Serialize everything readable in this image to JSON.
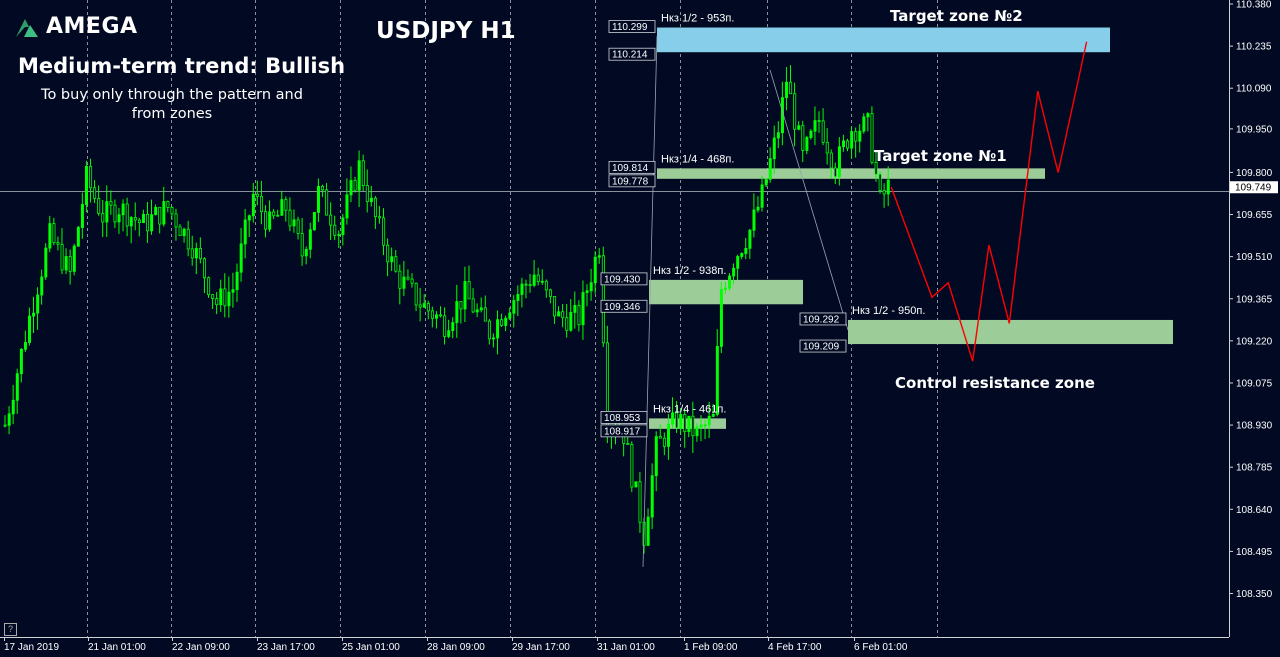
{
  "logo": {
    "text": "AMEGA",
    "icon": "amega-logo-icon",
    "icon_color": "#2e9e6a"
  },
  "title": "USDJPY H1",
  "trend": "Medium-term trend: Bullish",
  "note": [
    "To buy only through the pattern  and",
    "from zones"
  ],
  "labels": {
    "target2": "Target zone №2",
    "target1": "Target zone №1",
    "control": "Control resistance zone",
    "corner": "?"
  },
  "colors": {
    "background": "#020a23",
    "candle": "#00ff00",
    "zone_green": "#9ccc98",
    "zone_blue": "#87ceeb",
    "forecast": "#ff0000",
    "grid": "#8a9099"
  },
  "chart_data": {
    "type": "candlestick",
    "symbol": "USDJPY",
    "timeframe": "H1",
    "ylim": [
      108.29,
      110.445
    ],
    "y_ticks": [
      "110.380",
      "110.235",
      "110.090",
      "109.950",
      "109.800",
      "109.655",
      "109.510",
      "109.365",
      "109.220",
      "109.075",
      "108.930",
      "108.785",
      "108.640",
      "108.495",
      "108.350"
    ],
    "current_price": "109.749",
    "x_ticks": [
      "17 Jan 2019",
      "21 Jan 01:00",
      "22 Jan 09:00",
      "23 Jan 17:00",
      "25 Jan 01:00",
      "28 Jan 09:00",
      "29 Jan 17:00",
      "31 Jan 01:00",
      "1 Feb 09:00",
      "4 Feb 17:00",
      "6 Feb 01:00"
    ],
    "close_path": [
      {
        "i": 0,
        "v": 108.93
      },
      {
        "i": 6,
        "v": 109.3
      },
      {
        "i": 11,
        "v": 109.58
      },
      {
        "i": 16,
        "v": 109.45
      },
      {
        "i": 20,
        "v": 109.78
      },
      {
        "i": 24,
        "v": 109.65
      },
      {
        "i": 28,
        "v": 109.68
      },
      {
        "i": 34,
        "v": 109.62
      },
      {
        "i": 40,
        "v": 109.68
      },
      {
        "i": 46,
        "v": 109.55
      },
      {
        "i": 52,
        "v": 109.35
      },
      {
        "i": 56,
        "v": 109.4
      },
      {
        "i": 61,
        "v": 109.72
      },
      {
        "i": 65,
        "v": 109.62
      },
      {
        "i": 69,
        "v": 109.68
      },
      {
        "i": 73,
        "v": 109.52
      },
      {
        "i": 77,
        "v": 109.73
      },
      {
        "i": 82,
        "v": 109.6
      },
      {
        "i": 87,
        "v": 109.82
      },
      {
        "i": 91,
        "v": 109.64
      },
      {
        "i": 96,
        "v": 109.45
      },
      {
        "i": 102,
        "v": 109.35
      },
      {
        "i": 108,
        "v": 109.28
      },
      {
        "i": 113,
        "v": 109.38
      },
      {
        "i": 119,
        "v": 109.25
      },
      {
        "i": 124,
        "v": 109.35
      },
      {
        "i": 130,
        "v": 109.45
      },
      {
        "i": 136,
        "v": 109.3
      },
      {
        "i": 141,
        "v": 109.3
      },
      {
        "i": 146,
        "v": 109.55
      },
      {
        "i": 148,
        "v": 108.95
      },
      {
        "i": 152,
        "v": 108.9
      },
      {
        "i": 157,
        "v": 108.55
      },
      {
        "i": 160,
        "v": 108.85
      },
      {
        "i": 165,
        "v": 108.95
      },
      {
        "i": 170,
        "v": 108.9
      },
      {
        "i": 174,
        "v": 108.95
      },
      {
        "i": 176,
        "v": 109.4
      },
      {
        "i": 179,
        "v": 109.5
      },
      {
        "i": 183,
        "v": 109.6
      },
      {
        "i": 186,
        "v": 109.72
      },
      {
        "i": 190,
        "v": 109.95
      },
      {
        "i": 192,
        "v": 110.12
      },
      {
        "i": 196,
        "v": 109.85
      },
      {
        "i": 200,
        "v": 109.98
      },
      {
        "i": 204,
        "v": 109.82
      },
      {
        "i": 208,
        "v": 109.95
      },
      {
        "i": 212,
        "v": 109.96
      },
      {
        "i": 215,
        "v": 109.7
      },
      {
        "i": 217,
        "v": 109.75
      }
    ],
    "zones": [
      {
        "label": "Нкз 1/2 - 953п.",
        "top": "110.299",
        "bottom": "110.214",
        "color": "blue",
        "from": "31 Jan 01:00"
      },
      {
        "label": "Нкз 1/4 - 468п.",
        "top": "109.814",
        "bottom": "109.778",
        "color": "green",
        "from": "31 Jan 01:00"
      },
      {
        "label": "Нкз 1/2 - 938п.",
        "top": "109.430",
        "bottom": "109.346",
        "color": "green",
        "from": "31 Jan 01:00"
      },
      {
        "label": "Нкз 1/4 - 461п.",
        "top": "108.953",
        "bottom": "108.917",
        "color": "green",
        "from": "31 Jan 01:00"
      },
      {
        "label": "Нкз 1/2 - 950п.",
        "top": "109.292",
        "bottom": "109.209",
        "color": "green",
        "from": "4 Feb 17:00"
      }
    ],
    "forecast_path": [
      {
        "i": 218,
        "v": 109.75
      },
      {
        "i": 228,
        "v": 109.37
      },
      {
        "i": 232,
        "v": 109.42
      },
      {
        "i": 238,
        "v": 109.15
      },
      {
        "i": 242,
        "v": 109.55
      },
      {
        "i": 247,
        "v": 109.28
      },
      {
        "i": 254,
        "v": 110.08
      },
      {
        "i": 259,
        "v": 109.8
      },
      {
        "i": 266,
        "v": 110.25
      }
    ]
  }
}
